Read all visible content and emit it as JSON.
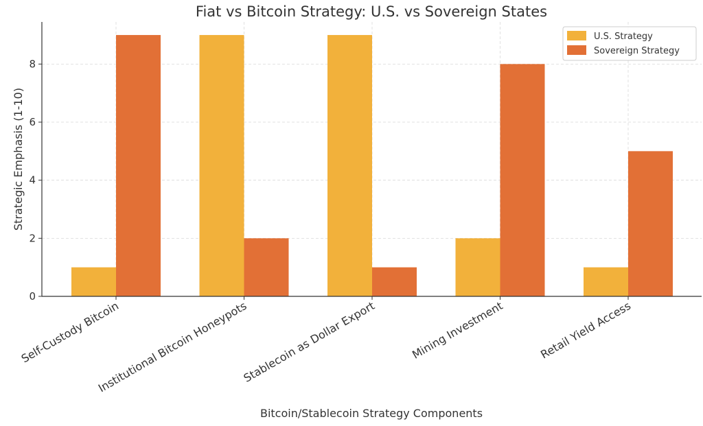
{
  "chart_data": {
    "type": "bar",
    "title": "Fiat vs Bitcoin Strategy: U.S. vs Sovereign States",
    "xlabel": "Bitcoin/Stablecoin Strategy Components",
    "ylabel": "Strategic Emphasis (1-10)",
    "categories": [
      "Self-Custody Bitcoin",
      "Institutional Bitcoin Honeypots",
      "Stablecoin as Dollar Export",
      "Mining Investment",
      "Retail Yield Access"
    ],
    "series": [
      {
        "name": "U.S. Strategy",
        "values": [
          1,
          9,
          9,
          2,
          1
        ],
        "color": "#F2B13B"
      },
      {
        "name": "Sovereign Strategy",
        "values": [
          9,
          2,
          1,
          8,
          5
        ],
        "color": "#E27036"
      }
    ],
    "ylim": [
      0,
      9.45
    ],
    "yticks": [
      0,
      2,
      4,
      6,
      8
    ],
    "grid": true,
    "legend_position": "top-right"
  }
}
